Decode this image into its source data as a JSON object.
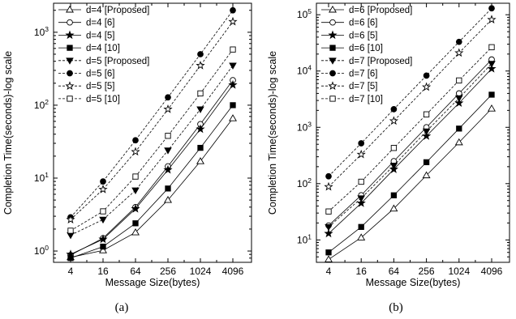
{
  "chart_data": [
    {
      "type": "line",
      "panel": "a",
      "caption": "(a)",
      "xlabel": "Message Size(bytes)",
      "ylabel": "Completion Time(seconds)-log scale",
      "x": [
        4,
        16,
        64,
        256,
        1024,
        4096
      ],
      "x_tick_labels": [
        "4",
        "16",
        "64",
        "256",
        "1024",
        "4096"
      ],
      "xscale": "log",
      "yscale": "log",
      "ylim": [
        0.7,
        2500
      ],
      "y_tick_labels": [
        "10^0",
        "10^1",
        "10^2",
        "10^3"
      ],
      "y_tick_values": [
        1,
        10,
        100,
        1000
      ],
      "legend_position": "top-left",
      "grid": false,
      "series": [
        {
          "name": "d=4 [Proposed]",
          "marker": "triangle-open",
          "dash": "solid",
          "values": [
            0.82,
            1.02,
            1.8,
            5.0,
            17,
            66
          ]
        },
        {
          "name": "d=4 [6]",
          "marker": "circle-open",
          "dash": "solid",
          "values": [
            0.88,
            1.5,
            4.0,
            14.5,
            55,
            220
          ]
        },
        {
          "name": "d=4 [5]",
          "marker": "star-filled",
          "dash": "solid",
          "values": [
            0.9,
            1.45,
            3.8,
            13.0,
            47,
            190
          ]
        },
        {
          "name": "d=4 [10]",
          "marker": "square-filled",
          "dash": "solid",
          "values": [
            0.8,
            1.15,
            2.4,
            7.2,
            26,
            100
          ]
        },
        {
          "name": "d=5 [Proposed]",
          "marker": "triangle-down-filled",
          "dash": "dashed",
          "values": [
            1.65,
            2.7,
            6.8,
            24,
            88,
            350
          ]
        },
        {
          "name": "d=5 [6]",
          "marker": "circle-filled",
          "dash": "dashed",
          "values": [
            2.9,
            9.0,
            33,
            128,
            500,
            2000
          ]
        },
        {
          "name": "d=5 [5]",
          "marker": "star-open",
          "dash": "dashed",
          "values": [
            2.7,
            7.0,
            23,
            88,
            350,
            1400
          ]
        },
        {
          "name": "d=5 [10]",
          "marker": "square-open",
          "dash": "dashed",
          "values": [
            1.9,
            3.5,
            10.5,
            38,
            145,
            580
          ]
        }
      ]
    },
    {
      "type": "line",
      "panel": "b",
      "caption": "(b)",
      "xlabel": "Message Size(bytes)",
      "ylabel": "Completion Time(seconds)-log scale",
      "x": [
        4,
        16,
        64,
        256,
        1024,
        4096
      ],
      "x_tick_labels": [
        "4",
        "16",
        "64",
        "256",
        "1024",
        "4096"
      ],
      "xscale": "log",
      "yscale": "log",
      "ylim": [
        4,
        160000
      ],
      "y_tick_labels": [
        "10^1",
        "10^2",
        "10^3",
        "10^4",
        "10^5"
      ],
      "y_tick_values": [
        10,
        100,
        1000,
        10000,
        100000
      ],
      "legend_position": "top-left",
      "grid": false,
      "series": [
        {
          "name": "d=6 [Proposed]",
          "marker": "triangle-open",
          "dash": "solid",
          "values": [
            4.5,
            11,
            36,
            140,
            540,
            2150
          ]
        },
        {
          "name": "d=6 [6]",
          "marker": "circle-open",
          "dash": "solid",
          "values": [
            18,
            62,
            250,
            1000,
            4000,
            16000
          ]
        },
        {
          "name": "d=6 [5]",
          "marker": "star-filled",
          "dash": "solid",
          "values": [
            13,
            45,
            180,
            700,
            2700,
            11000
          ]
        },
        {
          "name": "d=6 [10]",
          "marker": "square-filled",
          "dash": "solid",
          "values": [
            6,
            17,
            62,
            240,
            950,
            3800
          ]
        },
        {
          "name": "d=7 [Proposed]",
          "marker": "triangle-down-filled",
          "dash": "dashed",
          "values": [
            17,
            55,
            210,
            850,
            3300,
            13500
          ]
        },
        {
          "name": "d=7 [6]",
          "marker": "circle-filled",
          "dash": "dashed",
          "values": [
            135,
            520,
            2100,
            8300,
            33000,
            130000
          ]
        },
        {
          "name": "d=7 [5]",
          "marker": "star-open",
          "dash": "dashed",
          "values": [
            88,
            330,
            1300,
            5200,
            21000,
            82000
          ]
        },
        {
          "name": "d=7 [10]",
          "marker": "square-open",
          "dash": "dashed",
          "values": [
            32,
            108,
            430,
            1700,
            6800,
            26500
          ]
        }
      ]
    }
  ]
}
